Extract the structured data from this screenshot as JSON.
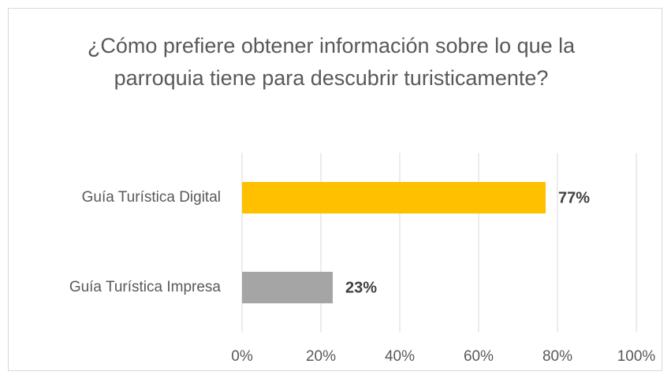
{
  "chart_data": {
    "type": "barh",
    "title": "¿Cómo prefiere obtener información sobre lo que la parroquia tiene para descubrir turisticamente?",
    "categories": [
      "Guía Turística Digital",
      "Guía Turística Impresa"
    ],
    "values": [
      77,
      23
    ],
    "value_labels": [
      "77%",
      "23%"
    ],
    "colors": [
      "#ffc000",
      "#a5a5a5"
    ],
    "xlim": [
      0,
      100
    ],
    "xticks": [
      {
        "value": 0,
        "label": "0%"
      },
      {
        "value": 20,
        "label": "20%"
      },
      {
        "value": 40,
        "label": "40%"
      },
      {
        "value": 60,
        "label": "60%"
      },
      {
        "value": 80,
        "label": "80%"
      },
      {
        "value": 100,
        "label": "100%"
      }
    ],
    "grid": true
  }
}
